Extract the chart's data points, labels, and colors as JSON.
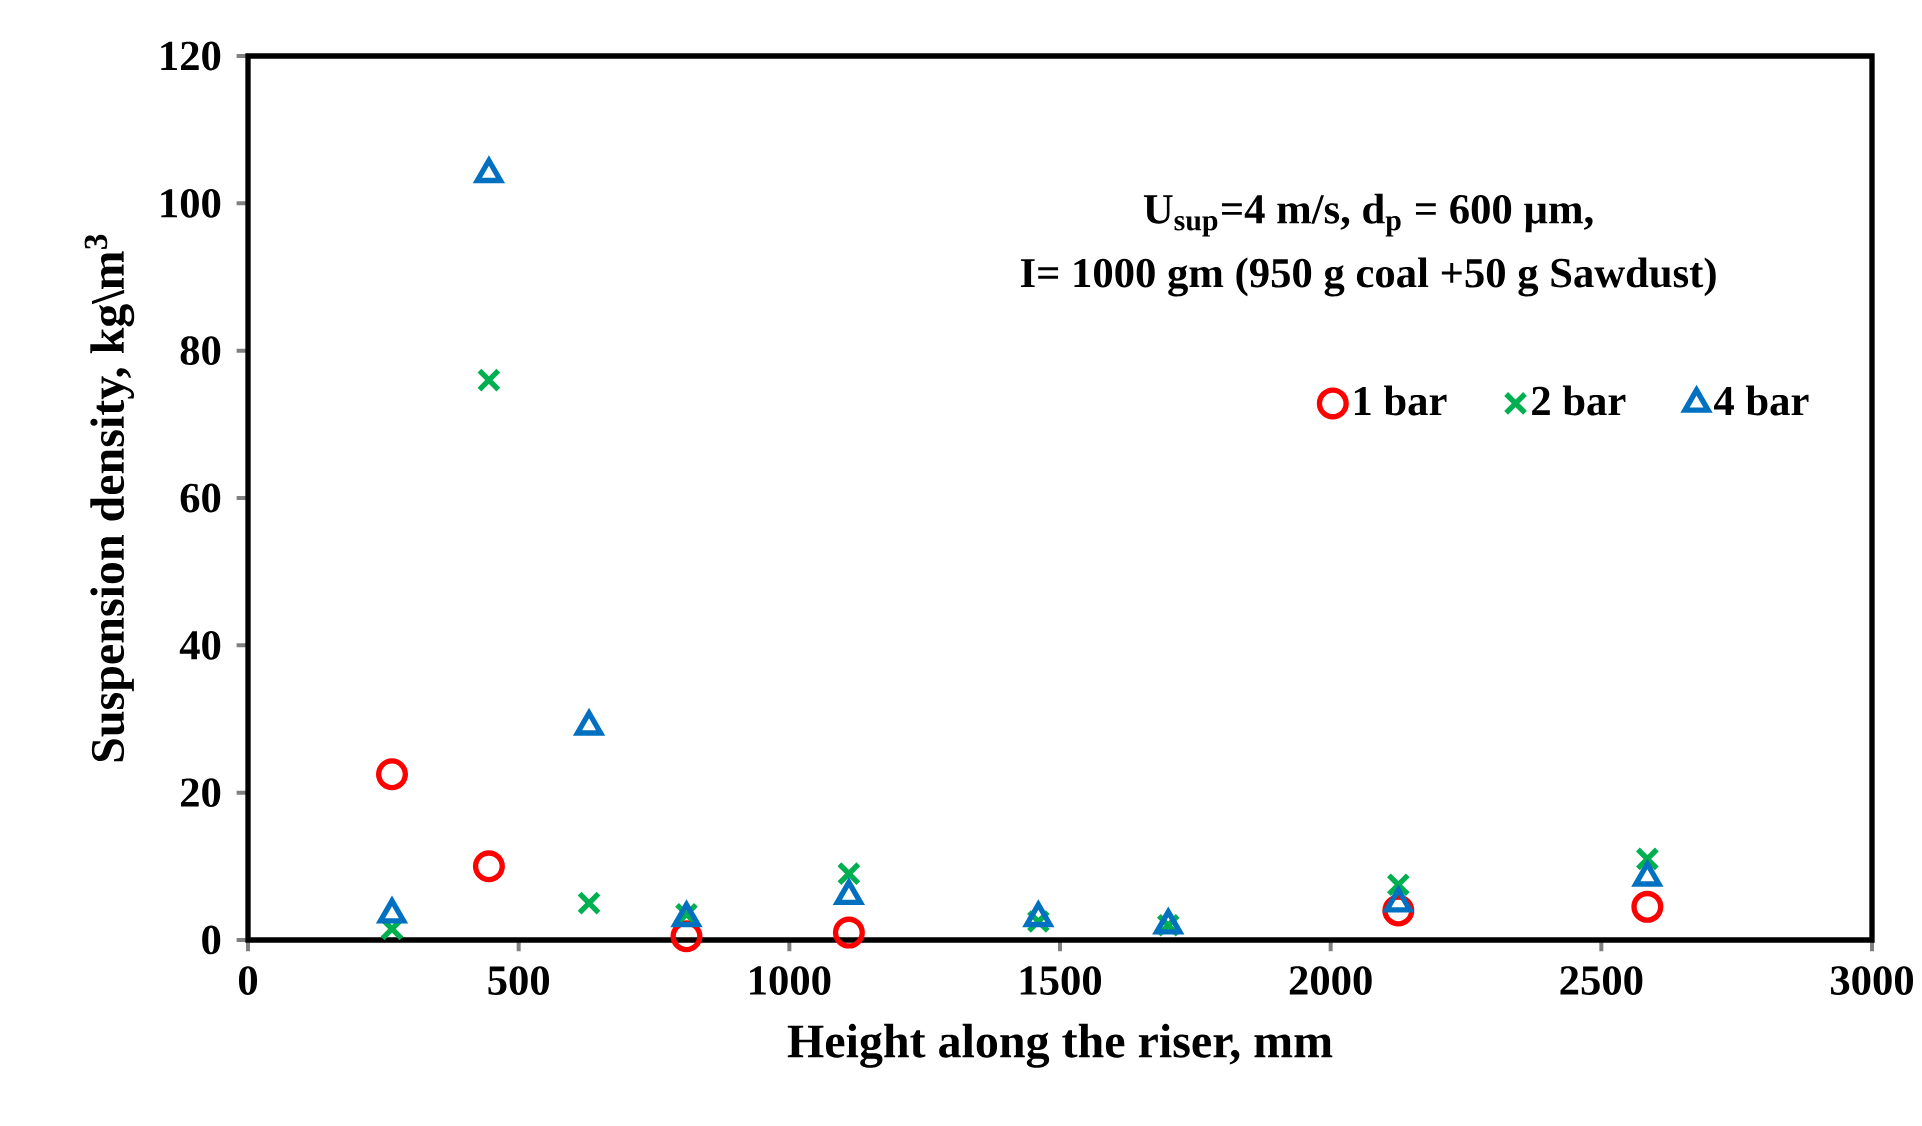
{
  "chart_data": {
    "type": "scatter",
    "xlabel": "Height along the riser, mm",
    "ylabel": "Suspension density, kg\\m$^{3}$",
    "annotations": [
      "U$_{sup}$=4 m/s, d$_{p}$ = 600 µm,",
      "I= 1000 gm (950 g coal +50 g Sawdust)"
    ],
    "series": [
      {
        "name": "1 bar",
        "color": "#ff0000",
        "marker": "circle",
        "x": [
          266,
          445,
          810,
          1110,
          2125,
          2585
        ],
        "values": [
          22.5,
          10,
          0.5,
          1,
          4,
          4.5
        ]
      },
      {
        "name": "2 bar",
        "color": "#00b050",
        "marker": "cross",
        "x": [
          266,
          445,
          630,
          810,
          1110,
          1460,
          1700,
          2125,
          2585
        ],
        "values": [
          1.5,
          76,
          5,
          3.5,
          9,
          2.5,
          2,
          7.5,
          11
        ]
      },
      {
        "name": "4 bar",
        "color": "#0070c0",
        "marker": "triangle",
        "x": [
          266,
          445,
          630,
          810,
          1110,
          1460,
          1700,
          2125,
          2585
        ],
        "values": [
          3.5,
          104,
          29,
          3,
          6,
          3,
          2,
          5,
          8.5
        ]
      }
    ],
    "xlim": [
      0,
      3000
    ],
    "xticks": [
      0,
      500,
      1000,
      1500,
      2000,
      2500,
      3000
    ],
    "ylim": [
      0,
      120
    ],
    "yticks": [
      0,
      20,
      40,
      60,
      80,
      100,
      120
    ],
    "grid": false,
    "legend": "right"
  }
}
